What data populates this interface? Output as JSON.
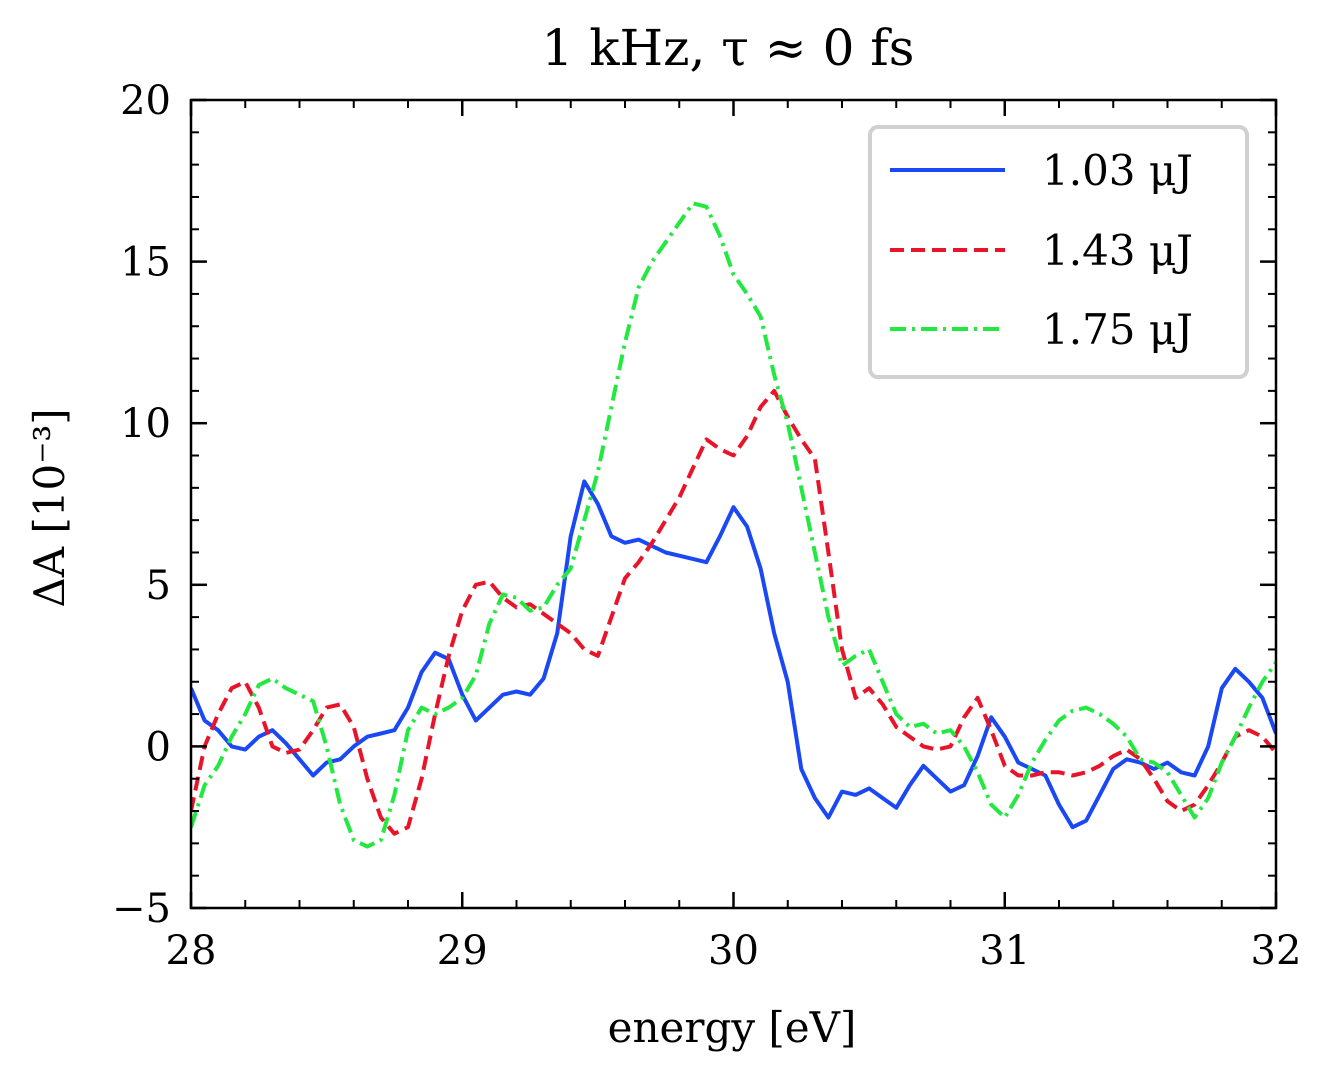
{
  "chart_data": {
    "type": "line",
    "title": "1 kHz, τ ≈ 0 fs",
    "xlabel": "energy [eV]",
    "ylabel": "ΔA [10⁻³]",
    "xlim": [
      28,
      32
    ],
    "ylim": [
      -5,
      20
    ],
    "xticks": [
      28,
      29,
      30,
      31,
      32
    ],
    "xtick_labels": [
      "28",
      "29",
      "30",
      "31",
      "32"
    ],
    "yticks": [
      -5,
      0,
      5,
      10,
      15,
      20
    ],
    "ytick_labels": [
      "−5",
      "0",
      "5",
      "10",
      "15",
      "20"
    ],
    "grid": false,
    "legend_position": "top-right",
    "series": [
      {
        "name": "1.03 μJ",
        "color": "#1a48f5",
        "dash": "solid",
        "x": [
          28.0,
          28.05,
          28.1,
          28.15,
          28.2,
          28.25,
          28.3,
          28.35,
          28.4,
          28.45,
          28.5,
          28.55,
          28.6,
          28.65,
          28.7,
          28.75,
          28.8,
          28.85,
          28.9,
          28.95,
          29.0,
          29.05,
          29.1,
          29.15,
          29.2,
          29.25,
          29.3,
          29.35,
          29.4,
          29.45,
          29.5,
          29.55,
          29.6,
          29.65,
          29.7,
          29.75,
          29.8,
          29.85,
          29.9,
          29.95,
          30.0,
          30.05,
          30.1,
          30.15,
          30.2,
          30.25,
          30.3,
          30.35,
          30.4,
          30.45,
          30.5,
          30.55,
          30.6,
          30.65,
          30.7,
          30.75,
          30.8,
          30.85,
          30.9,
          30.95,
          31.0,
          31.05,
          31.1,
          31.15,
          31.2,
          31.25,
          31.3,
          31.35,
          31.4,
          31.45,
          31.5,
          31.55,
          31.6,
          31.65,
          31.7,
          31.75,
          31.8,
          31.85,
          31.9,
          31.95,
          32.0
        ],
        "y": [
          1.8,
          0.8,
          0.5,
          0.0,
          -0.1,
          0.3,
          0.5,
          0.1,
          -0.4,
          -0.9,
          -0.5,
          -0.4,
          0.0,
          0.3,
          0.4,
          0.5,
          1.2,
          2.3,
          2.9,
          2.7,
          1.6,
          0.8,
          1.2,
          1.6,
          1.7,
          1.6,
          2.1,
          3.5,
          6.5,
          8.2,
          7.5,
          6.5,
          6.3,
          6.4,
          6.2,
          6.0,
          5.9,
          5.8,
          5.7,
          6.5,
          7.4,
          6.8,
          5.5,
          3.5,
          2.0,
          -0.7,
          -1.6,
          -2.2,
          -1.4,
          -1.5,
          -1.3,
          -1.6,
          -1.9,
          -1.2,
          -0.6,
          -1.0,
          -1.4,
          -1.2,
          -0.3,
          0.9,
          0.3,
          -0.5,
          -0.7,
          -0.9,
          -1.8,
          -2.5,
          -2.3,
          -1.5,
          -0.7,
          -0.4,
          -0.5,
          -0.7,
          -0.5,
          -0.8,
          -0.9,
          0.0,
          1.8,
          2.4,
          2.0,
          1.5,
          0.4
        ]
      },
      {
        "name": "1.43 μJ",
        "color": "#e8152a",
        "dash": "dashed",
        "x": [
          28.0,
          28.05,
          28.1,
          28.15,
          28.2,
          28.25,
          28.3,
          28.35,
          28.4,
          28.45,
          28.5,
          28.55,
          28.6,
          28.65,
          28.7,
          28.75,
          28.8,
          28.85,
          28.9,
          28.95,
          29.0,
          29.05,
          29.1,
          29.15,
          29.2,
          29.25,
          29.3,
          29.35,
          29.4,
          29.45,
          29.5,
          29.55,
          29.6,
          29.65,
          29.7,
          29.75,
          29.8,
          29.85,
          29.9,
          29.95,
          30.0,
          30.05,
          30.1,
          30.15,
          30.2,
          30.25,
          30.3,
          30.35,
          30.4,
          30.45,
          30.5,
          30.55,
          30.6,
          30.65,
          30.7,
          30.75,
          30.8,
          30.85,
          30.9,
          30.95,
          31.0,
          31.05,
          31.1,
          31.15,
          31.2,
          31.25,
          31.3,
          31.35,
          31.4,
          31.45,
          31.5,
          31.55,
          31.6,
          31.65,
          31.7,
          31.75,
          31.8,
          31.85,
          31.9,
          31.95,
          32.0
        ],
        "y": [
          -2.0,
          0.0,
          1.0,
          1.8,
          2.0,
          1.2,
          0.0,
          -0.2,
          -0.1,
          0.5,
          1.2,
          1.3,
          0.6,
          -1.0,
          -2.2,
          -2.7,
          -2.5,
          -1.0,
          1.0,
          2.8,
          4.2,
          5.0,
          5.1,
          4.6,
          4.3,
          4.4,
          4.1,
          3.8,
          3.5,
          3.0,
          2.8,
          4.0,
          5.2,
          5.7,
          6.3,
          7.0,
          7.7,
          8.6,
          9.5,
          9.2,
          9.0,
          9.6,
          10.5,
          11.0,
          10.2,
          9.5,
          8.9,
          6.0,
          3.0,
          1.5,
          1.8,
          1.3,
          0.6,
          0.3,
          0.0,
          -0.1,
          0.0,
          0.9,
          1.5,
          0.5,
          -0.6,
          -0.9,
          -0.9,
          -0.8,
          -0.8,
          -0.9,
          -0.8,
          -0.6,
          -0.3,
          -0.1,
          -0.4,
          -1.0,
          -1.7,
          -2.0,
          -1.8,
          -1.2,
          -0.5,
          0.3,
          0.5,
          0.3,
          -0.2
        ]
      },
      {
        "name": "1.75 μJ",
        "color": "#23e83f",
        "dash": "dashdot",
        "x": [
          28.0,
          28.05,
          28.1,
          28.15,
          28.2,
          28.25,
          28.3,
          28.35,
          28.4,
          28.45,
          28.5,
          28.55,
          28.6,
          28.65,
          28.7,
          28.75,
          28.8,
          28.85,
          28.9,
          28.95,
          29.0,
          29.05,
          29.1,
          29.15,
          29.2,
          29.25,
          29.3,
          29.35,
          29.4,
          29.45,
          29.5,
          29.55,
          29.6,
          29.65,
          29.7,
          29.75,
          29.8,
          29.85,
          29.9,
          29.95,
          30.0,
          30.05,
          30.1,
          30.15,
          30.2,
          30.25,
          30.3,
          30.35,
          30.4,
          30.45,
          30.5,
          30.55,
          30.6,
          30.65,
          30.7,
          30.75,
          30.8,
          30.85,
          30.9,
          30.95,
          31.0,
          31.05,
          31.1,
          31.15,
          31.2,
          31.25,
          31.3,
          31.35,
          31.4,
          31.45,
          31.5,
          31.55,
          31.6,
          31.65,
          31.7,
          31.75,
          31.8,
          31.85,
          31.9,
          31.95,
          32.0
        ],
        "y": [
          -2.5,
          -1.2,
          -0.6,
          0.3,
          1.0,
          1.9,
          2.1,
          1.8,
          1.6,
          1.4,
          0.0,
          -1.8,
          -2.9,
          -3.1,
          -2.9,
          -1.5,
          0.5,
          1.2,
          1.0,
          1.2,
          1.5,
          2.2,
          3.8,
          4.7,
          4.6,
          4.2,
          4.3,
          5.0,
          5.5,
          7.0,
          8.5,
          10.5,
          12.5,
          14.2,
          15.0,
          15.6,
          16.2,
          16.8,
          16.7,
          15.8,
          14.6,
          14.0,
          13.3,
          11.5,
          10.0,
          8.0,
          6.0,
          4.0,
          2.5,
          2.8,
          3.0,
          2.0,
          1.0,
          0.6,
          0.7,
          0.4,
          0.5,
          0.0,
          -0.8,
          -1.8,
          -2.2,
          -1.5,
          -0.5,
          0.2,
          0.8,
          1.1,
          1.2,
          1.0,
          0.7,
          0.3,
          -0.4,
          -0.5,
          -0.8,
          -1.5,
          -2.2,
          -1.6,
          -0.5,
          0.3,
          1.2,
          2.0,
          2.6
        ]
      }
    ]
  }
}
